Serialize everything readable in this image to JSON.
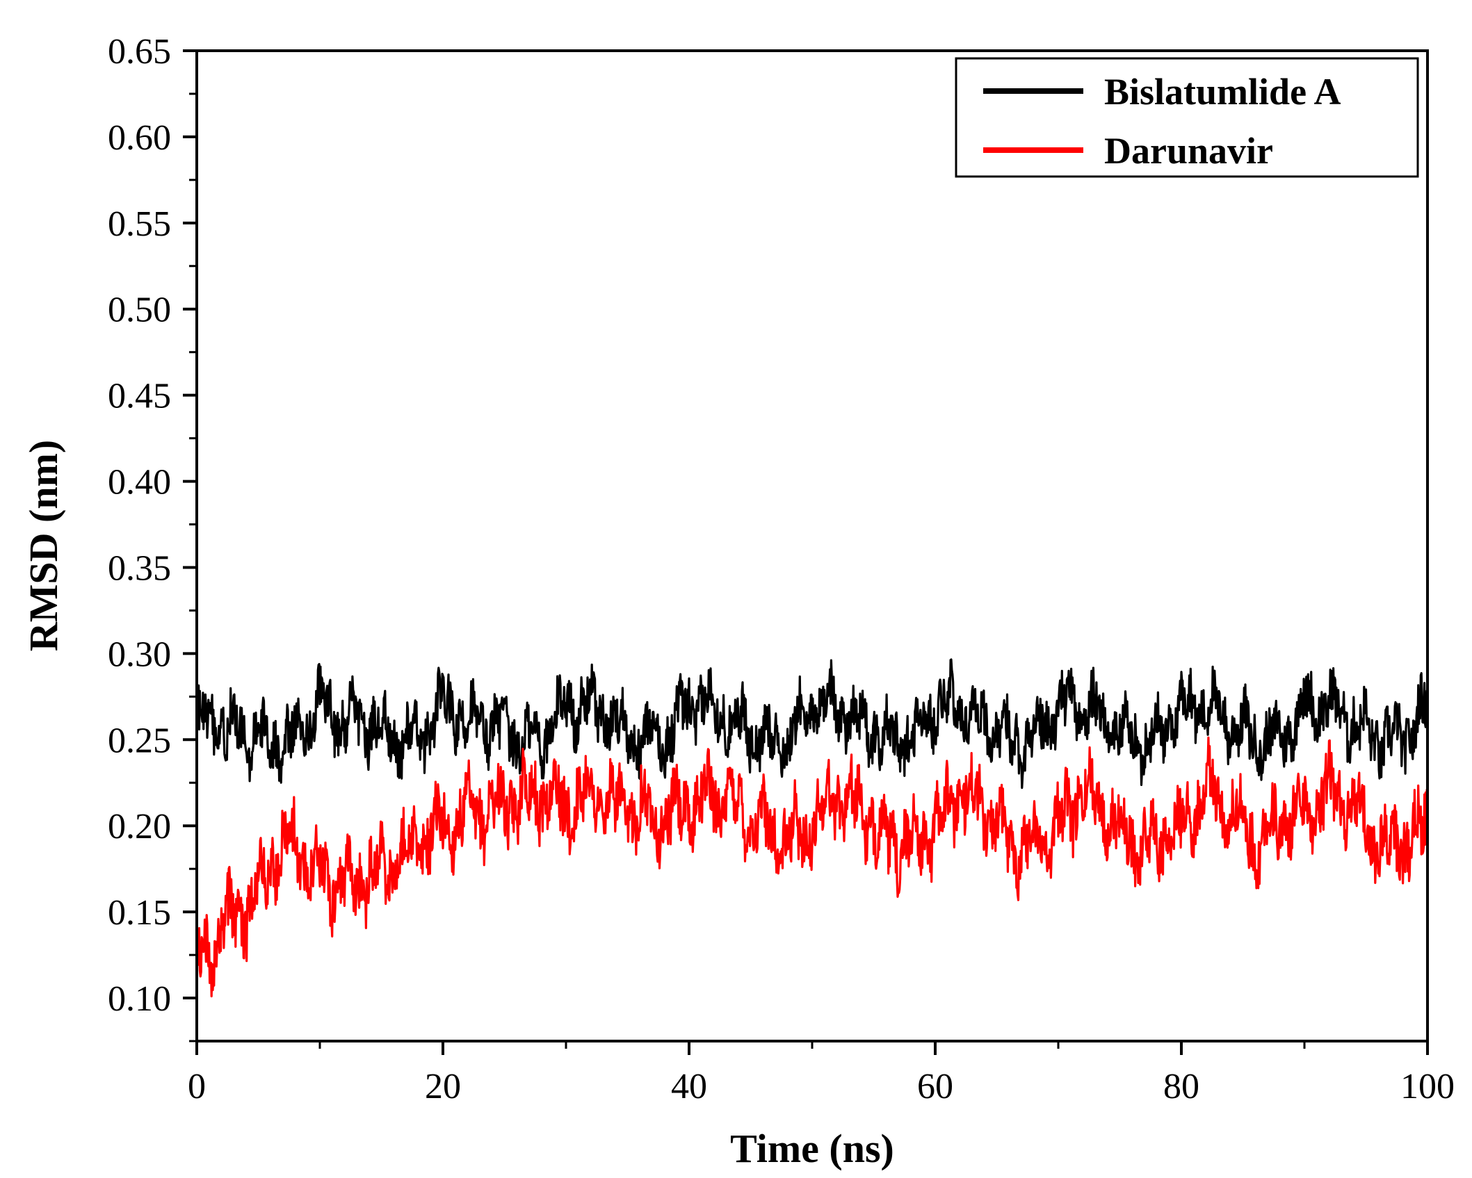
{
  "chart_data": {
    "type": "line",
    "xlabel": "Time (ns)",
    "ylabel": "RMSD (nm)",
    "xlim": [
      0,
      100
    ],
    "ylim": [
      0.075,
      0.65
    ],
    "x_ticks": [
      "0",
      "20",
      "40",
      "60",
      "80",
      "100"
    ],
    "y_ticks": [
      "0.10",
      "0.15",
      "0.20",
      "0.25",
      "0.30",
      "0.35",
      "0.40",
      "0.45",
      "0.50",
      "0.55",
      "0.60",
      "0.65"
    ],
    "grid": false,
    "legend_position": "top-right",
    "series": [
      {
        "name": "Bislatumlide A",
        "color": "#000000",
        "x": [
          0,
          2,
          4,
          6,
          8,
          10,
          12,
          14,
          16,
          18,
          20,
          22,
          24,
          26,
          28,
          30,
          32,
          34,
          36,
          38,
          40,
          42,
          44,
          46,
          48,
          50,
          52,
          54,
          56,
          58,
          60,
          62,
          64,
          66,
          68,
          70,
          72,
          74,
          76,
          78,
          80,
          82,
          84,
          86,
          88,
          90,
          92,
          94,
          96,
          98,
          100
        ],
        "y": [
          0.26,
          0.26,
          0.25,
          0.25,
          0.25,
          0.27,
          0.26,
          0.26,
          0.25,
          0.25,
          0.27,
          0.26,
          0.26,
          0.25,
          0.25,
          0.27,
          0.27,
          0.26,
          0.25,
          0.25,
          0.27,
          0.27,
          0.26,
          0.25,
          0.25,
          0.27,
          0.27,
          0.26,
          0.25,
          0.25,
          0.27,
          0.27,
          0.26,
          0.25,
          0.25,
          0.27,
          0.27,
          0.26,
          0.25,
          0.25,
          0.27,
          0.27,
          0.26,
          0.25,
          0.25,
          0.27,
          0.27,
          0.26,
          0.25,
          0.25,
          0.27
        ],
        "amplitude": 0.03
      },
      {
        "name": "Darunavir",
        "color": "#ff0000",
        "x": [
          0,
          2,
          4,
          6,
          8,
          10,
          12,
          14,
          16,
          18,
          20,
          22,
          24,
          26,
          28,
          30,
          32,
          34,
          36,
          38,
          40,
          42,
          44,
          46,
          48,
          50,
          52,
          54,
          56,
          58,
          60,
          62,
          64,
          66,
          68,
          70,
          72,
          74,
          76,
          78,
          80,
          82,
          84,
          86,
          88,
          90,
          92,
          94,
          96,
          98,
          100
        ],
        "y": [
          0.12,
          0.14,
          0.15,
          0.18,
          0.19,
          0.17,
          0.165,
          0.17,
          0.18,
          0.19,
          0.2,
          0.205,
          0.21,
          0.215,
          0.22,
          0.21,
          0.22,
          0.21,
          0.21,
          0.205,
          0.21,
          0.22,
          0.21,
          0.2,
          0.19,
          0.2,
          0.22,
          0.21,
          0.19,
          0.19,
          0.2,
          0.22,
          0.21,
          0.19,
          0.19,
          0.2,
          0.22,
          0.21,
          0.19,
          0.19,
          0.2,
          0.22,
          0.21,
          0.19,
          0.2,
          0.21,
          0.22,
          0.21,
          0.19,
          0.19,
          0.2
        ],
        "amplitude": 0.035
      }
    ]
  }
}
